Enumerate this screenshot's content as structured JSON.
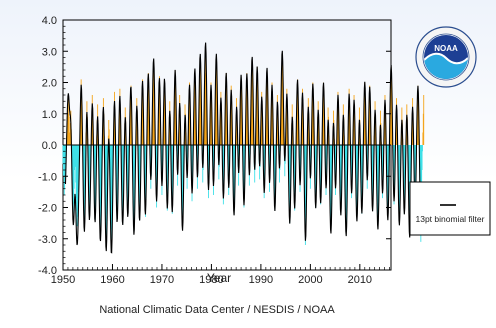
{
  "chart_data": {
    "type": "bar",
    "title": "",
    "xlabel": "Year",
    "ylabel": "",
    "xlim": [
      1950,
      2016.3
    ],
    "ylim": [
      -4.0,
      4.0
    ],
    "xticks": [
      1950,
      1960,
      1970,
      1980,
      1990,
      2000,
      2010
    ],
    "yticks": [
      -4.0,
      -3.0,
      -2.0,
      -1.0,
      0.0,
      1.0,
      2.0,
      3.0,
      4.0
    ],
    "ytick_labels": [
      "-4.0",
      "-3.0",
      "-2.0",
      "-1.0",
      "0.0",
      "1.0",
      "2.0",
      "3.0",
      "4.0"
    ],
    "positive_color": "#f4a51c",
    "negative_color": "#3fe0e8",
    "filter_color": "#000000",
    "grid": false,
    "legend": {
      "position": "right",
      "entries": [
        "13pt binomial filter"
      ]
    },
    "series": [
      {
        "name": "",
        "kind": "monthly",
        "x_start": 1950.0,
        "x_step_years": 0.08333,
        "values": [
          -0.6,
          -1.0,
          -0.4,
          -1.6,
          -1.4,
          -0.9,
          -1.1,
          -0.5,
          -0.2,
          0.3,
          0.6,
          0.8,
          1.2,
          1.5,
          1.0,
          0.9,
          0.4,
          0.3,
          0.7,
          1.1,
          0.5,
          -0.3,
          -0.8,
          -1.5,
          -1.9,
          -1.6,
          -2.2,
          -1.4,
          -0.8,
          -0.4,
          -0.7,
          -1.2,
          -1.7,
          -2.1,
          -2.6,
          -1.8,
          -2.3,
          -1.5,
          -1.0,
          -0.6,
          -0.3,
          0.2,
          0.5,
          1.3,
          2.1,
          1.6,
          0.8,
          0.3,
          -0.2,
          -0.9,
          -1.4,
          -2.0,
          -2.6,
          -1.9,
          -1.3,
          -0.5,
          0.4,
          1.0,
          1.4,
          0.9,
          0.2,
          -0.4,
          -1.0,
          -1.7,
          -2.3,
          -1.8,
          -1.1,
          -0.6,
          -0.2,
          0.4,
          0.9,
          1.6,
          1.2,
          0.5,
          -0.1,
          -0.7,
          -1.2,
          -2.0,
          -2.4,
          -1.6,
          -0.9,
          -0.4,
          0.3,
          0.8,
          1.3,
          0.8,
          0.2,
          -0.5,
          -1.1,
          -1.8,
          -2.3,
          -2.7,
          -2.0,
          -1.3,
          -0.7,
          -0.2,
          0.4,
          1.1,
          1.5,
          1.0,
          0.3,
          -0.4,
          -1.0,
          -1.9,
          -2.6,
          -3.0,
          -2.2,
          -1.5,
          -0.8,
          -0.3,
          0.3,
          0.8,
          0.5,
          -0.2,
          -0.8,
          -1.4,
          -2.1,
          -2.7,
          -3.0,
          -2.1,
          -1.4,
          -0.7,
          -0.1,
          0.5,
          1.2,
          1.7,
          1.1,
          0.4,
          -0.3,
          -0.9,
          -1.6,
          -2.4,
          -2.0,
          -1.3,
          -0.6,
          0.0,
          0.6,
          1.3,
          1.8,
          1.2,
          0.5,
          -0.2,
          -0.8,
          -1.3,
          -1.9,
          -2.5,
          -1.7,
          -1.0,
          -0.4,
          0.2,
          0.7,
          1.2,
          0.9,
          0.3,
          -0.4,
          -1.0,
          -1.5,
          -2.2,
          -1.8,
          -1.2,
          -0.5,
          0.1,
          0.6,
          1.0,
          1.4,
          1.9,
          1.3,
          0.6,
          0.0,
          -0.6,
          -1.2,
          -1.9,
          -2.8,
          -2.1,
          -1.4,
          -0.8,
          -0.2,
          0.4,
          0.9,
          1.5,
          1.1,
          0.5,
          -0.1,
          -0.7,
          -1.3,
          -1.8,
          -2.4,
          -1.6,
          -0.9,
          -0.3,
          0.3,
          0.9,
          1.6,
          2.1,
          1.5,
          0.8,
          0.1,
          -0.5,
          -1.1,
          -1.7,
          -2.3,
          -1.5,
          -0.8,
          -0.2,
          0.5,
          1.1,
          1.7,
          2.3,
          1.6,
          0.9,
          0.3,
          -0.3,
          -0.9,
          -1.4,
          -1.0,
          -0.4,
          0.3,
          0.9,
          1.4,
          2.0,
          2.6,
          1.9,
          1.2,
          0.5,
          -0.1,
          -0.7,
          -1.3,
          -2.0,
          -1.4,
          -0.7,
          -0.1,
          0.5,
          1.0,
          1.6,
          2.2,
          1.5,
          0.8,
          0.2,
          -0.4,
          -1.0,
          -1.6,
          -1.1,
          -0.5,
          0.2,
          0.8,
          1.5,
          2.1,
          1.7,
          1.0,
          0.4,
          -0.2,
          -0.8,
          -1.5,
          -2.1,
          -1.5,
          -0.9,
          -0.3,
          0.3,
          0.9,
          1.4,
          1.0,
          0.3,
          -0.3,
          -0.9,
          -1.6,
          -2.2,
          -1.6,
          -0.9,
          -0.2,
          0.4,
          1.0,
          1.7,
          2.4,
          1.8,
          1.1,
          0.4,
          -0.2,
          -0.8,
          -1.3,
          -0.9,
          -0.3,
          0.4,
          1.0,
          1.6,
          1.2,
          0.5,
          -0.1,
          -0.7,
          -1.4,
          -2.0,
          -2.6,
          -1.9,
          -1.2,
          -0.5,
          0.1,
          0.7,
          1.3,
          1.0,
          0.4,
          -0.2,
          -0.8,
          -1.4,
          -1.0,
          -0.4,
          0.3,
          0.9,
          1.5,
          2.0,
          1.4,
          0.7,
          0.1,
          -0.5,
          -1.1,
          -1.8,
          -1.3,
          -0.6,
          0.0,
          0.6,
          1.2,
          1.8,
          2.4,
          1.7,
          1.0,
          0.4,
          -0.2,
          -0.8,
          -1.4,
          -1.0,
          -0.3,
          0.3,
          0.9,
          1.5,
          2.1,
          2.7,
          2.0,
          1.3,
          0.6,
          0.0,
          -0.6,
          -1.2,
          -0.8,
          -0.2,
          0.5,
          1.1,
          1.7,
          2.3,
          3.1,
          2.2,
          1.4,
          0.7,
          0.1,
          -0.5,
          -1.1,
          -1.7,
          -1.2,
          -0.5,
          0.2,
          0.8,
          1.4,
          2.0,
          1.5,
          0.8,
          0.2,
          -0.4,
          -1.0,
          -1.6,
          -1.1,
          -0.5,
          0.2,
          0.8,
          1.4,
          2.1,
          2.8,
          2.0,
          1.3,
          0.6,
          0.0,
          -0.6,
          -1.1,
          -0.7,
          -0.1,
          0.5,
          1.1,
          1.7,
          1.3,
          0.6,
          0.0,
          -0.6,
          -1.2,
          -1.9,
          -1.4,
          -0.7,
          -0.1,
          0.5,
          1.1,
          1.8,
          2.3,
          1.6,
          0.9,
          0.2,
          -0.4,
          -1.0,
          -1.6,
          -1.2,
          -0.6,
          0.1,
          0.7,
          1.3,
          1.9,
          1.4,
          0.7,
          0.1,
          -0.5,
          -1.1,
          -1.7,
          -2.2,
          -1.6,
          -0.9,
          -0.3,
          0.3,
          0.9,
          1.5,
          1.1,
          0.5,
          -0.1,
          -0.7,
          -1.3,
          -0.9,
          -0.3,
          0.4,
          1.0,
          1.6,
          2.2,
          1.7,
          1.0,
          0.4,
          -0.2,
          -0.8,
          -1.4,
          -2.0,
          -1.5,
          -0.8,
          -0.2,
          0.4,
          1.0,
          1.6,
          2.3,
          1.7,
          1.0,
          0.4,
          -0.2,
          -0.8,
          -1.3,
          -0.9,
          -0.3,
          0.3,
          0.9,
          1.5,
          2.1,
          2.6,
          1.9,
          1.2,
          0.5,
          -0.1,
          -0.7,
          -1.2,
          -0.8,
          -0.2,
          0.5,
          1.1,
          1.8,
          2.5,
          1.8,
          1.1,
          0.5,
          -0.1,
          -0.6,
          -1.1,
          -0.7,
          -0.1,
          0.5,
          1.1,
          1.7,
          1.3,
          0.7,
          0.1,
          -0.5,
          -1.1,
          -1.7,
          -1.3,
          -0.7,
          0.0,
          0.6,
          1.2,
          1.9,
          2.4,
          1.7,
          1.0,
          0.3,
          -0.3,
          -0.9,
          -1.5,
          -1.1,
          -0.5,
          0.2,
          0.8,
          1.4,
          2.0,
          1.5,
          0.8,
          0.2,
          -0.4,
          -1.0,
          -1.6,
          -2.1,
          -1.5,
          -0.9,
          -0.2,
          0.4,
          1.0,
          1.6,
          1.2,
          0.6,
          0.0,
          -0.6,
          -1.2,
          -0.8,
          -0.2,
          0.4,
          1.0,
          1.6,
          2.2,
          2.8,
          2.0,
          1.3,
          0.6,
          0.0,
          -0.5,
          -1.0,
          -0.6,
          0.0,
          0.6,
          1.2,
          1.8,
          1.3,
          0.7,
          0.1,
          -0.5,
          -1.1,
          -1.8,
          -2.5,
          -1.8,
          -1.1,
          -0.5,
          0.1,
          0.7,
          1.3,
          0.9,
          0.3,
          -0.3,
          -0.9,
          -1.5,
          -2.1,
          -1.5,
          -0.8,
          -0.2,
          0.4,
          1.0,
          1.6,
          2.1,
          1.5,
          0.8,
          0.2,
          -0.4,
          -1.0,
          -1.5,
          -1.1,
          -0.5,
          0.1,
          0.7,
          1.3,
          1.8,
          1.3,
          0.6,
          0.0,
          -0.6,
          -1.2,
          -1.8,
          -3.2,
          -2.3,
          -1.5,
          -0.8,
          -0.2,
          0.4,
          1.0,
          1.5,
          1.0,
          0.4,
          -0.2,
          -0.8,
          -1.4,
          -1.0,
          -0.4,
          0.2,
          0.8,
          1.4,
          2.0,
          1.5,
          0.9,
          0.3,
          -0.3,
          -0.9,
          -1.5,
          -2.0,
          -1.5,
          -0.9,
          -0.3,
          0.3,
          0.9,
          1.4,
          1.0,
          0.4,
          -0.2,
          -0.8,
          -1.4,
          -1.9,
          -1.4,
          -0.8,
          -0.2,
          0.4,
          1.0,
          1.5,
          2.0,
          1.4,
          0.8,
          0.2,
          -0.4,
          -1.0,
          -1.6,
          -1.2,
          -0.6,
          0.0,
          0.6,
          1.2,
          0.9,
          0.3,
          -0.3,
          -0.9,
          -1.5,
          -2.1,
          -2.6,
          -1.9,
          -1.2,
          -0.6,
          0.0,
          0.6,
          1.1,
          0.8,
          0.2,
          -0.4,
          -1.0,
          -1.6,
          -1.2,
          -0.6,
          0.0,
          0.6,
          1.2,
          1.7,
          1.3,
          0.7,
          0.1,
          -0.5,
          -1.1,
          -1.6,
          -2.2,
          -1.6,
          -1.0,
          -0.4,
          0.2,
          0.8,
          1.3,
          0.9,
          0.3,
          -0.3,
          -0.9,
          -1.5,
          -2.1,
          -2.7,
          -2.0,
          -1.3,
          -0.6,
          0.0,
          0.6,
          1.2,
          1.8,
          1.3,
          0.7,
          0.1,
          -0.5,
          -1.1,
          -1.7,
          -1.3,
          -0.7,
          -0.1,
          0.5,
          1.1,
          1.6,
          1.2,
          0.6,
          0.0,
          -0.6,
          -1.2,
          -1.8,
          -2.3,
          -1.7,
          -1.1,
          -0.5,
          0.1,
          0.7,
          1.2,
          0.8,
          0.2,
          -0.4,
          -1.0,
          -1.6,
          -2.2,
          -1.6,
          -0.9,
          -0.3,
          0.3,
          0.9,
          1.5,
          2.0,
          1.5,
          0.9,
          0.3,
          -0.3,
          -0.9,
          -1.4,
          -1.0,
          -0.4,
          0.2,
          0.8,
          1.4,
          1.9,
          1.4,
          0.8,
          0.2,
          -0.4,
          -1.0,
          -1.6,
          -2.1,
          -1.5,
          -0.9,
          -0.3,
          0.3,
          0.9,
          1.4,
          1.0,
          0.4,
          -0.2,
          -0.8,
          -1.4,
          -2.0,
          -2.5,
          -1.8,
          -1.2,
          -0.6,
          0.0,
          0.6,
          1.1,
          0.7,
          0.1,
          -0.5,
          -1.1,
          -1.7,
          -1.3,
          -0.7,
          -0.1,
          0.5,
          1.1,
          1.6,
          1.2,
          0.6,
          0.0,
          -0.6,
          -1.2,
          -1.8,
          -2.2,
          -1.7,
          -1.1,
          -0.5,
          0.1,
          0.7,
          1.2,
          1.8,
          2.5,
          1.8,
          1.1,
          0.5,
          -0.1,
          -0.7,
          -1.3,
          -1.9,
          -1.4,
          -0.8,
          -0.2,
          0.4,
          1.0,
          1.5,
          1.1,
          0.5,
          -0.1,
          -0.7,
          -1.3,
          -1.9,
          -2.4,
          -1.8,
          -1.1,
          -0.5,
          0.1,
          0.7,
          1.2,
          0.8,
          0.2,
          -0.4,
          -1.0,
          -1.6,
          -2.2,
          -1.6,
          -1.0,
          -0.4,
          0.2,
          0.8,
          1.3,
          0.9,
          0.3,
          -0.3,
          -0.9,
          -1.5,
          -2.1,
          -2.7,
          -2.0,
          -1.4,
          -0.8,
          -0.2,
          0.4,
          1.0,
          1.5,
          1.0,
          0.4,
          -0.2,
          -0.8,
          -1.4,
          -2.0,
          -1.5,
          -0.9,
          -0.3,
          0.3,
          0.9,
          1.4,
          1.9,
          1.4,
          0.8,
          0.2,
          -0.4,
          -1.0,
          -1.6,
          -3.1,
          -2.2,
          -1.5,
          -0.8,
          -0.2,
          0.4,
          1.0,
          1.6
        ]
      }
    ]
  },
  "legend_box": {
    "label": "13pt binomial filter"
  },
  "footer": {
    "credit": "National Climatic Data Center / NESDIS / NOAA"
  },
  "logo": {
    "wordmark": "NOAA",
    "ring_top": "NATIONAL OCEANIC AND ATMOSPHERIC ADMINISTRATION",
    "ring_bottom": "U.S. DEPARTMENT OF COMMERCE"
  }
}
